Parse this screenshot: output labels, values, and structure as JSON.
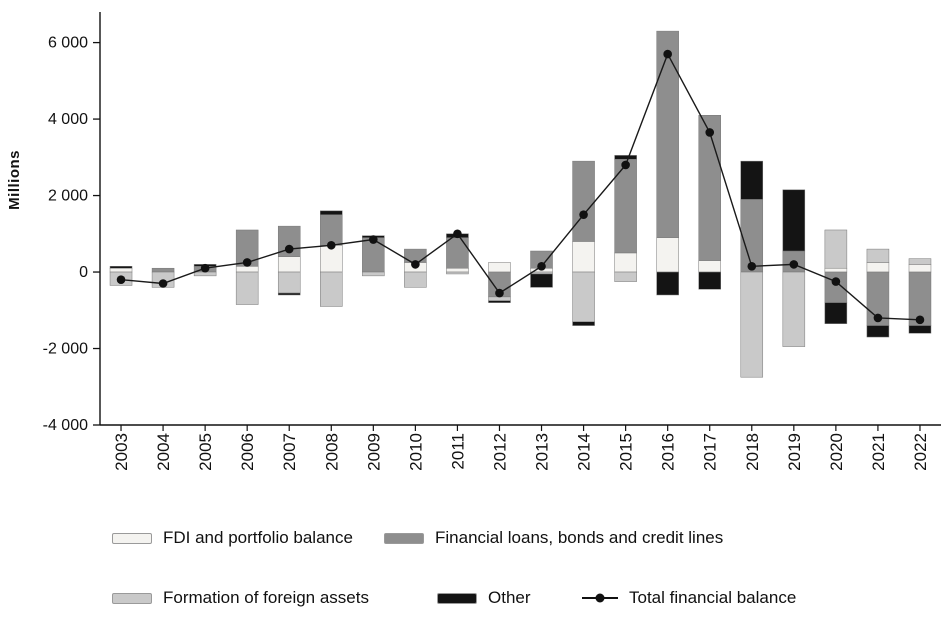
{
  "chart_data": {
    "type": "bar",
    "subtype": "stacked-bar-with-line",
    "title": "",
    "ylabel": "Millions",
    "categories": [
      "2003",
      "2004",
      "2005",
      "2006",
      "2007",
      "2008",
      "2009",
      "2010",
      "2011",
      "2012",
      "2013",
      "2014",
      "2015",
      "2016",
      "2017",
      "2018",
      "2019",
      "2020",
      "2021",
      "2022"
    ],
    "series": [
      {
        "name": "FDI and portfolio balance",
        "color": "#f4f3f0",
        "values": [
          100,
          0,
          0,
          150,
          400,
          700,
          0,
          250,
          100,
          250,
          100,
          800,
          500,
          900,
          300,
          0,
          0,
          100,
          250,
          200
        ]
      },
      {
        "name": "Financial loans, bonds and credit lines",
        "color": "#8e8e8e",
        "values": [
          0,
          100,
          150,
          950,
          800,
          800,
          900,
          350,
          800,
          -650,
          450,
          2100,
          2450,
          5400,
          3800,
          1900,
          550,
          -800,
          -1400,
          -1400
        ]
      },
      {
        "name": "Formation of foreign assets",
        "color": "#c9c9c9",
        "values": [
          -350,
          -400,
          -100,
          -850,
          -550,
          -900,
          -100,
          -400,
          -50,
          -100,
          -50,
          -1300,
          -250,
          0,
          0,
          -2750,
          -1950,
          1000,
          350,
          150
        ]
      },
      {
        "name": "Other",
        "color": "#141414",
        "values": [
          50,
          0,
          50,
          0,
          -50,
          100,
          50,
          0,
          100,
          -50,
          -350,
          -100,
          100,
          -600,
          -450,
          1000,
          1600,
          -550,
          -300,
          -200
        ]
      }
    ],
    "line_series": {
      "name": "Total financial balance",
      "color": "#1a1a1a",
      "values": [
        -200,
        -300,
        100,
        250,
        600,
        700,
        850,
        200,
        1000,
        -550,
        150,
        1500,
        2800,
        5700,
        3650,
        150,
        200,
        -250,
        -1200,
        -1250
      ]
    },
    "ylim": [
      -4000,
      6800
    ],
    "yticks": [
      -4000,
      -2000,
      0,
      2000,
      4000,
      6000
    ],
    "grid": false,
    "legend_position": "bottom"
  }
}
